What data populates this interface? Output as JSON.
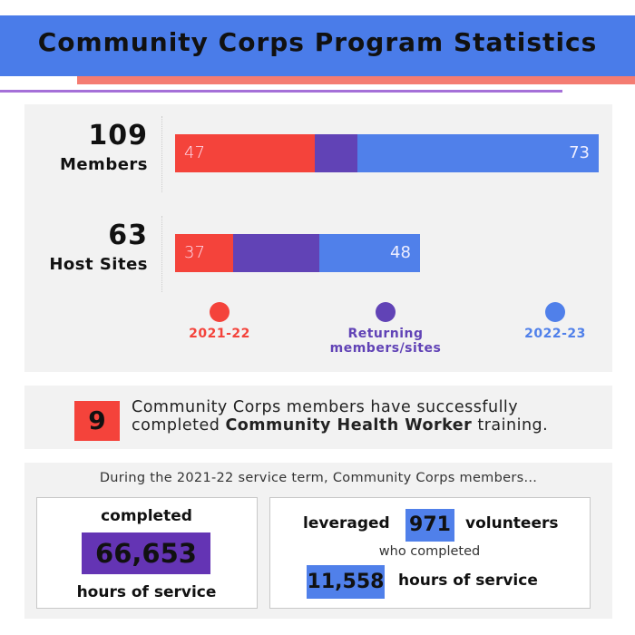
{
  "header": {
    "title": "Community Corps Program Statistics"
  },
  "overlap_chart": {
    "rows": [
      {
        "total": 109,
        "label": "Members",
        "values": [
          47,
          73
        ]
      },
      {
        "total": 63,
        "label": "Host Sites",
        "values": [
          37,
          48
        ]
      }
    ],
    "legend": [
      {
        "name": "2021-22",
        "color": "#f4433b"
      },
      {
        "name": "Returning members/sites",
        "color": "#6143b6"
      },
      {
        "name": "2022-23",
        "color": "#5080ea"
      }
    ]
  },
  "training": {
    "count": 9,
    "text": "Community Corps members have successfully completed",
    "bold": "Community Health Worker",
    "tail": "training."
  },
  "service": {
    "intro": "During the 2021-22 service term, Community Corps members...",
    "left": {
      "top": "completed",
      "number": "66,653",
      "bottom": "hours of service"
    },
    "right": {
      "lead": "leveraged",
      "volunteers": "971",
      "volunteers_label": "volunteers",
      "middle": "who completed",
      "hours": "11,558",
      "hours_label": "hours of service"
    }
  }
}
